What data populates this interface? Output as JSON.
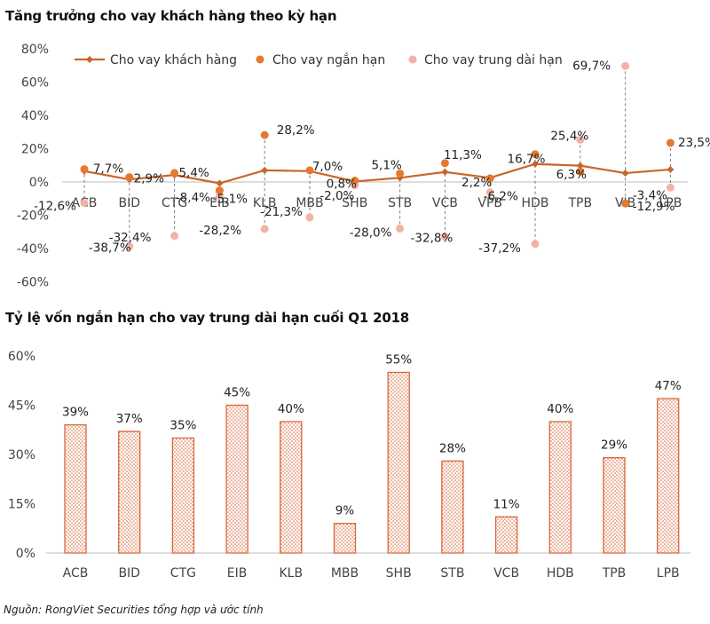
{
  "chart_data": [
    {
      "type": "line",
      "title": "Tăng trưởng cho vay khách hàng theo kỳ hạn",
      "categories": [
        "ACB",
        "BID",
        "CTG",
        "EIB",
        "KLB",
        "MBB",
        "SHB",
        "STB",
        "VCB",
        "VPB",
        "HDB",
        "TPB",
        "VIB",
        "LPB"
      ],
      "ylim": [
        -60,
        80
      ],
      "yticks": [
        80,
        60,
        40,
        20,
        0,
        -20,
        -40,
        -60
      ],
      "ytick_labels": [
        "80%",
        "60%",
        "40%",
        "20%",
        "0%",
        "-20%",
        "-40%",
        "-60%"
      ],
      "legend_position": "top",
      "series": [
        {
          "name": "Cho vay khách hàng",
          "style": "line-diamond",
          "color": "#c8662a",
          "values": [
            6.5,
            1.5,
            4.2,
            -0.8,
            7.0,
            6.5,
            0.3,
            2.5,
            6.0,
            2.5,
            10.8,
            9.8,
            5.3,
            7.5
          ]
        },
        {
          "name": "Cho vay ngắn hạn",
          "style": "dot",
          "color": "#e6782f",
          "values": [
            7.7,
            2.9,
            5.4,
            -5.1,
            28.2,
            7.0,
            0.8,
            5.1,
            11.3,
            2.2,
            16.7,
            6.3,
            -12.9,
            23.5
          ]
        },
        {
          "name": "Cho vay trung dài hạn",
          "style": "dot",
          "color": "#f2b3a6",
          "values": [
            -12.6,
            -38.7,
            -32.4,
            -8.4,
            -28.2,
            -21.3,
            -2.0,
            -28.0,
            -32.8,
            -6.2,
            -37.2,
            25.4,
            69.7,
            -3.4
          ]
        }
      ],
      "data_labels": {
        "short_term": [
          "7,7%",
          "2,9%",
          "5,4%",
          "-5,1%",
          "28,2%",
          "7,0%",
          "0,8%",
          "5,1%",
          "11,3%",
          "2,2%",
          "16,7%",
          "6,3%",
          "-12,9%",
          "23,5%"
        ],
        "long_term": [
          "-12,6%",
          "-38,7%",
          "-32,4%",
          "-8,4%",
          "-28,2%",
          "-21,3%",
          "-2,0%",
          "-28,0%",
          "-32,8%",
          "-6,2%",
          "-37,2%",
          "25,4%",
          "69,7%",
          "-3,4%"
        ]
      }
    },
    {
      "type": "bar",
      "title": "Tỷ lệ vốn ngắn hạn cho vay trung dài hạn cuối Q1 2018",
      "categories": [
        "ACB",
        "BID",
        "CTG",
        "EIB",
        "KLB",
        "MBB",
        "SHB",
        "STB",
        "VCB",
        "HDB",
        "TPB",
        "LPB"
      ],
      "values": [
        39,
        37,
        35,
        45,
        40,
        9,
        55,
        28,
        11,
        40,
        29,
        47
      ],
      "value_labels": [
        "39%",
        "37%",
        "35%",
        "45%",
        "40%",
        "9%",
        "55%",
        "28%",
        "11%",
        "40%",
        "29%",
        "47%"
      ],
      "ylim": [
        0,
        60
      ],
      "yticks": [
        60,
        45,
        30,
        15,
        0
      ],
      "ytick_labels": [
        "60%",
        "45%",
        "30%",
        "15%",
        "0%"
      ],
      "bar_color": "#d9663a",
      "fill_pattern": "dotted"
    }
  ],
  "source_note": "Nguồn: RongViet Securities tổng hợp và ước tính"
}
